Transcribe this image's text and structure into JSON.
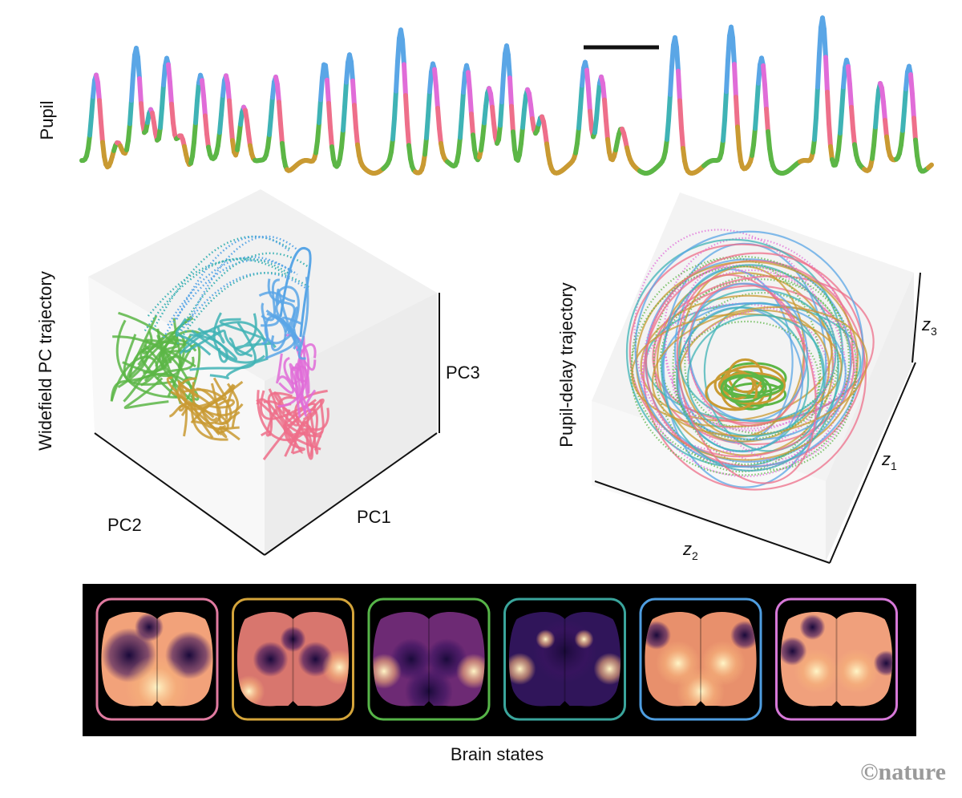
{
  "pupil": {
    "label": "Pupil"
  },
  "left_plot": {
    "ylabel": "Widefield PC trajectory",
    "axis_pc1": "PC1",
    "axis_pc2": "PC2",
    "axis_pc3": "PC3"
  },
  "right_plot": {
    "ylabel": "Pupil-delay trajectory",
    "axis_z1_base": "z",
    "axis_z1_sub": "1",
    "axis_z2_base": "z",
    "axis_z2_sub": "2",
    "axis_z3_base": "z",
    "axis_z3_sub": "3"
  },
  "brain_states": {
    "label": "Brain states",
    "frame_colors": [
      "#e07aa0",
      "#d4a43a",
      "#56b448",
      "#3aa59c",
      "#4e9de0",
      "#d678d8"
    ]
  },
  "credit": "©nature",
  "colors": {
    "pink": "#ee6f8a",
    "gold": "#c99a32",
    "green": "#5cb646",
    "teal": "#3fb3b5",
    "blue": "#5aa6e6",
    "magenta": "#e06cd8"
  }
}
